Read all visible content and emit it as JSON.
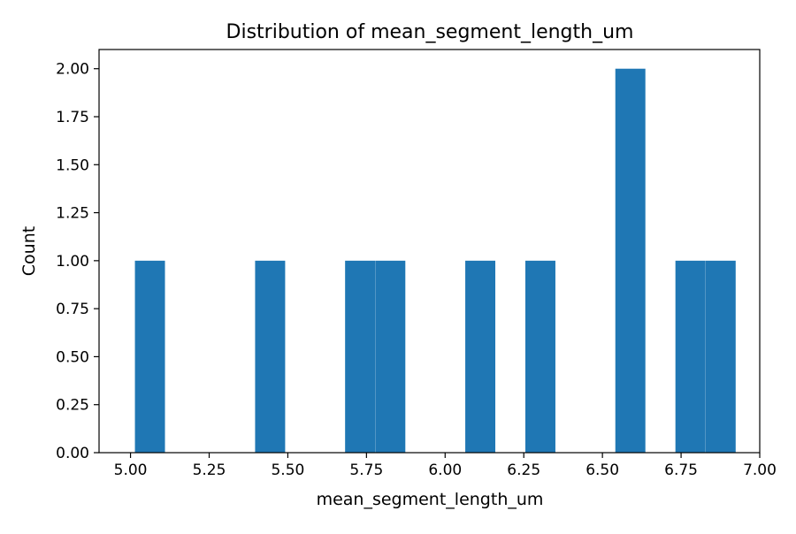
{
  "chart_data": {
    "type": "bar",
    "title": "Distribution of mean_segment_length_um",
    "xlabel": "mean_segment_length_um",
    "ylabel": "Count",
    "bin_width": 0.0955,
    "bins": [
      {
        "start": 5.014,
        "count": 1
      },
      {
        "start": 5.396,
        "count": 1
      },
      {
        "start": 5.682,
        "count": 1
      },
      {
        "start": 5.778,
        "count": 1
      },
      {
        "start": 6.064,
        "count": 1
      },
      {
        "start": 6.255,
        "count": 1
      },
      {
        "start": 6.541,
        "count": 2
      },
      {
        "start": 6.732,
        "count": 1
      },
      {
        "start": 6.828,
        "count": 1
      }
    ],
    "xlim": [
      4.9,
      7.0
    ],
    "ylim": [
      0,
      2.1
    ],
    "xticks": [
      "5.00",
      "5.25",
      "5.50",
      "5.75",
      "6.00",
      "6.25",
      "6.50",
      "6.75",
      "7.00"
    ],
    "yticks": [
      "0.00",
      "0.25",
      "0.50",
      "0.75",
      "1.00",
      "1.25",
      "1.50",
      "1.75",
      "2.00"
    ],
    "bar_color": "#1f77b4",
    "grid": false,
    "legend": "none"
  }
}
